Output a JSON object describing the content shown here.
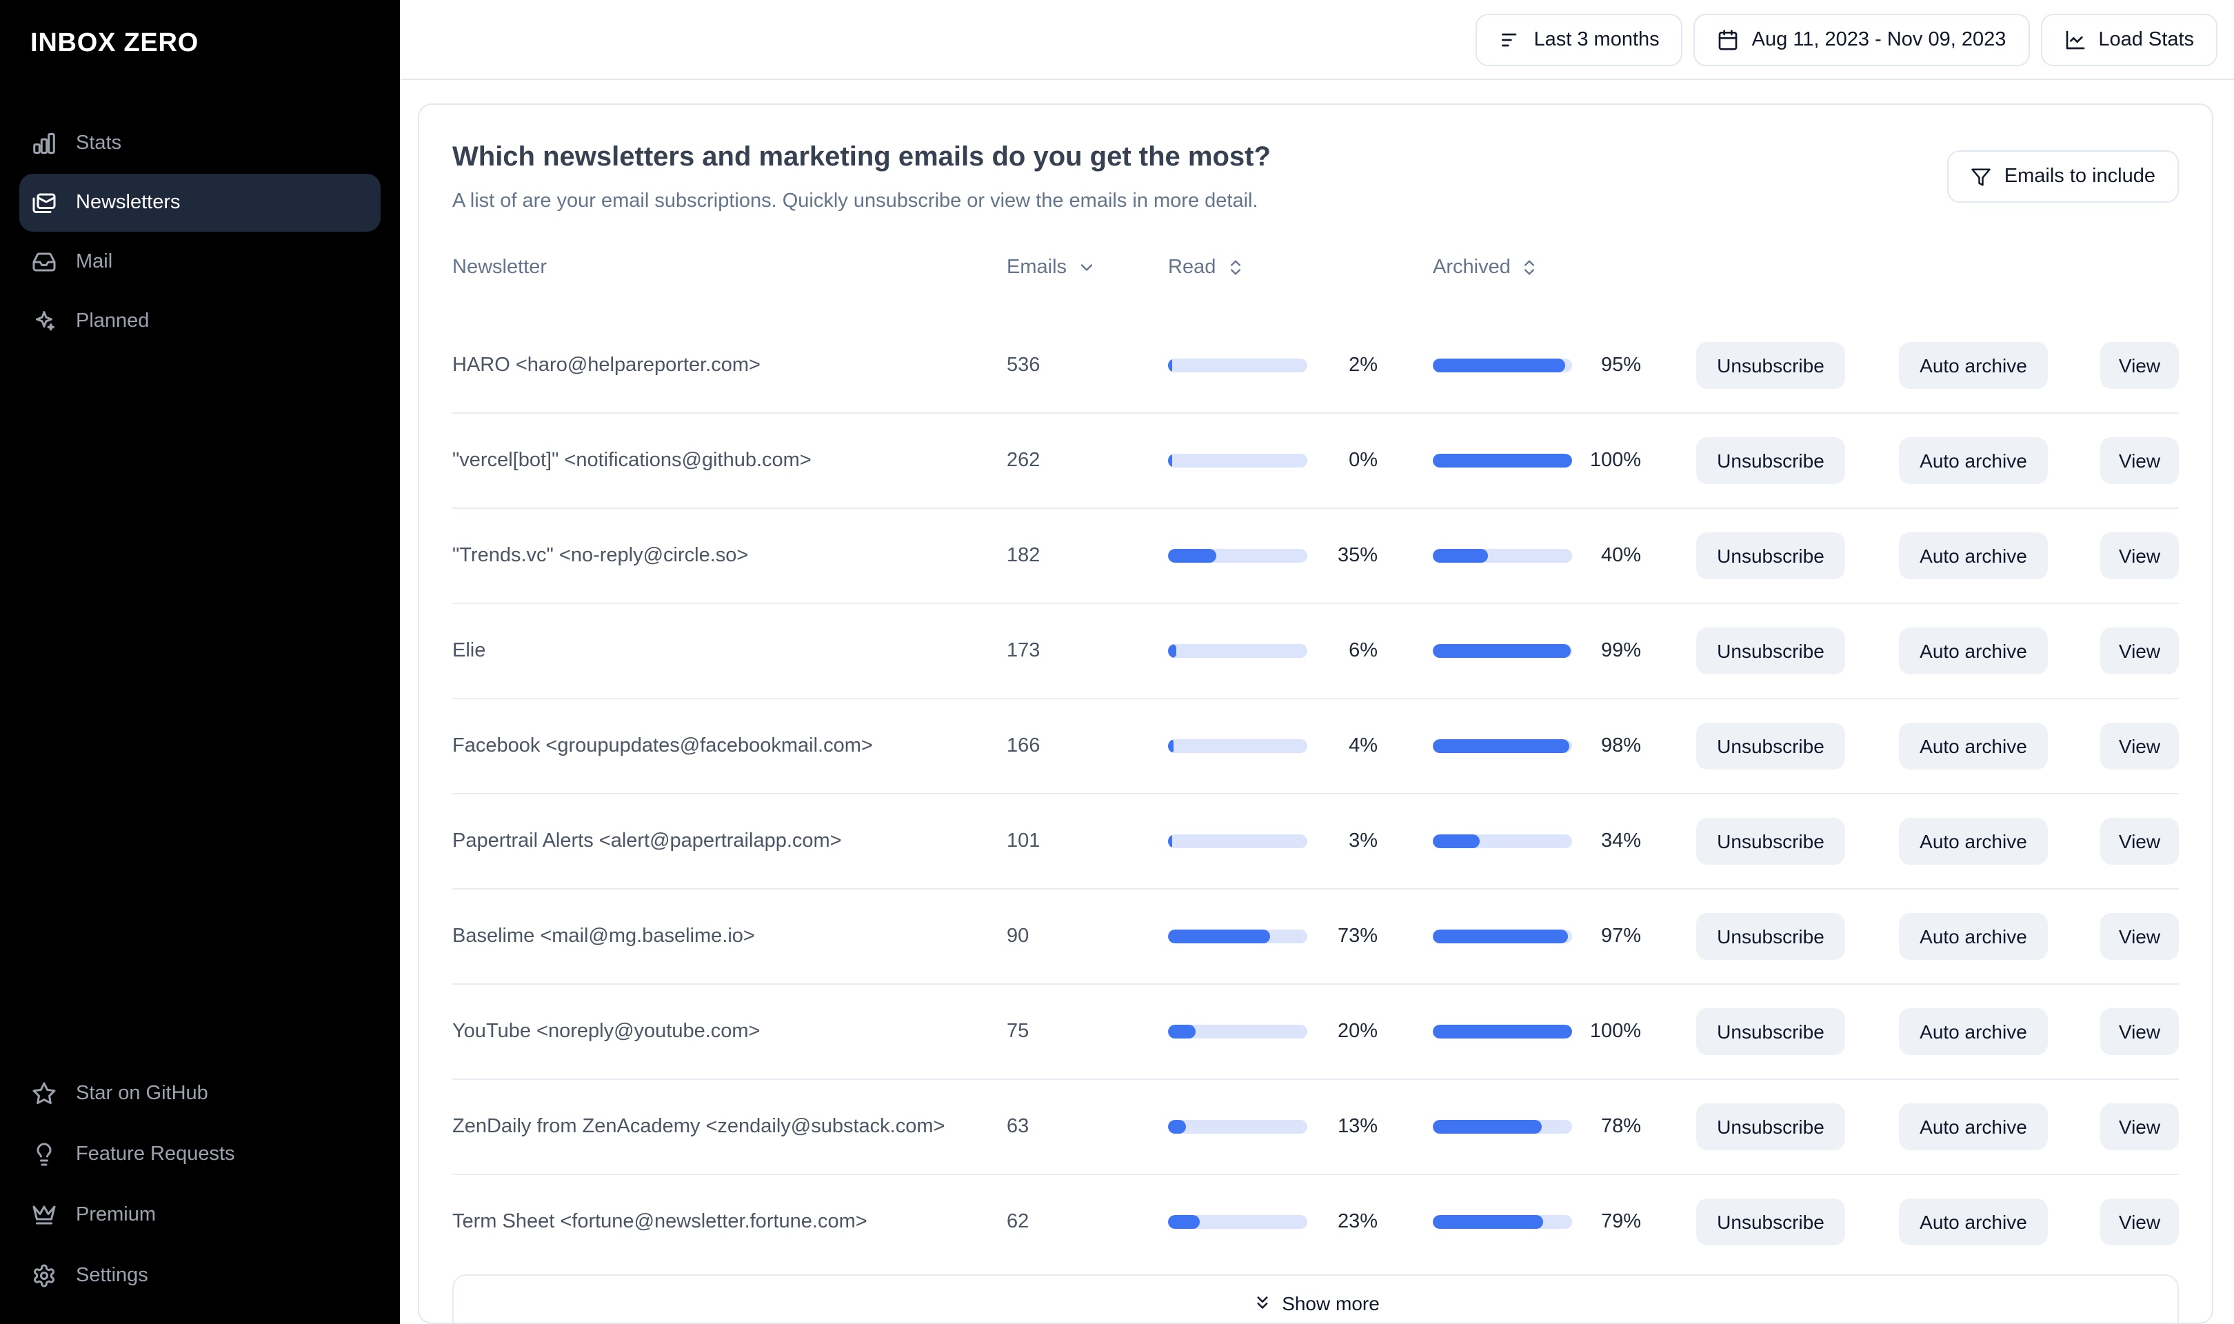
{
  "app": {
    "name": "INBOX ZERO"
  },
  "sidebar": {
    "main_items": [
      {
        "label": "Stats",
        "icon": "bar-chart-icon",
        "active": false
      },
      {
        "label": "Newsletters",
        "icon": "newsletter-mail-icon",
        "active": true
      },
      {
        "label": "Mail",
        "icon": "inbox-icon",
        "active": false
      },
      {
        "label": "Planned",
        "icon": "sparkles-icon",
        "active": false
      }
    ],
    "footer_items": [
      {
        "label": "Star on GitHub",
        "icon": "star-icon"
      },
      {
        "label": "Feature Requests",
        "icon": "lightbulb-icon"
      },
      {
        "label": "Premium",
        "icon": "crown-icon"
      },
      {
        "label": "Settings",
        "icon": "gear-icon"
      }
    ]
  },
  "topbar": {
    "range_button": "Last 3 months",
    "date_button": "Aug 11, 2023 - Nov 09, 2023",
    "load_stats_button": "Load Stats"
  },
  "newsletters_card": {
    "title": "Which newsletters and marketing emails do you get the most?",
    "subtitle": "A list of are your email subscriptions. Quickly unsubscribe or view the emails in more detail.",
    "filter_button": "Emails to include",
    "columns": [
      {
        "label": "Newsletter",
        "sort": "none"
      },
      {
        "label": "Emails",
        "sort": "desc"
      },
      {
        "label": "Read",
        "sort": "up-down"
      },
      {
        "label": "Archived",
        "sort": "up-down"
      }
    ],
    "actions": {
      "unsubscribe": "Unsubscribe",
      "auto_archive": "Auto archive",
      "view": "View"
    },
    "show_more": "Show more",
    "rows": [
      {
        "name": "HARO <haro@helpareporter.com>",
        "emails": "536",
        "read_pct": 2,
        "archived_pct": 95
      },
      {
        "name": "\"vercel[bot]\" <notifications@github.com>",
        "emails": "262",
        "read_pct": 0,
        "archived_pct": 100
      },
      {
        "name": "\"Trends.vc\" <no-reply@circle.so>",
        "emails": "182",
        "read_pct": 35,
        "archived_pct": 40
      },
      {
        "name": "Elie",
        "emails": "173",
        "read_pct": 6,
        "archived_pct": 99
      },
      {
        "name": "Facebook <groupupdates@facebookmail.com>",
        "emails": "166",
        "read_pct": 4,
        "archived_pct": 98
      },
      {
        "name": "Papertrail Alerts <alert@papertrailapp.com>",
        "emails": "101",
        "read_pct": 3,
        "archived_pct": 34
      },
      {
        "name": "Baselime <mail@mg.baselime.io>",
        "emails": "90",
        "read_pct": 73,
        "archived_pct": 97
      },
      {
        "name": "YouTube <noreply@youtube.com>",
        "emails": "75",
        "read_pct": 20,
        "archived_pct": 100
      },
      {
        "name": "ZenDaily from ZenAcademy <zendaily@substack.com>",
        "emails": "63",
        "read_pct": 13,
        "archived_pct": 78
      },
      {
        "name": "Term Sheet <fortune@newsletter.fortune.com>",
        "emails": "62",
        "read_pct": 23,
        "archived_pct": 79
      }
    ]
  },
  "colors": {
    "accent_blue": "#3e74f2",
    "bar_track": "#dbe4fa",
    "sidebar_bg": "#000000",
    "sidebar_active_bg": "#1e293b",
    "divider": "#e9edf2",
    "secondary_button_bg": "#eef2f7"
  }
}
